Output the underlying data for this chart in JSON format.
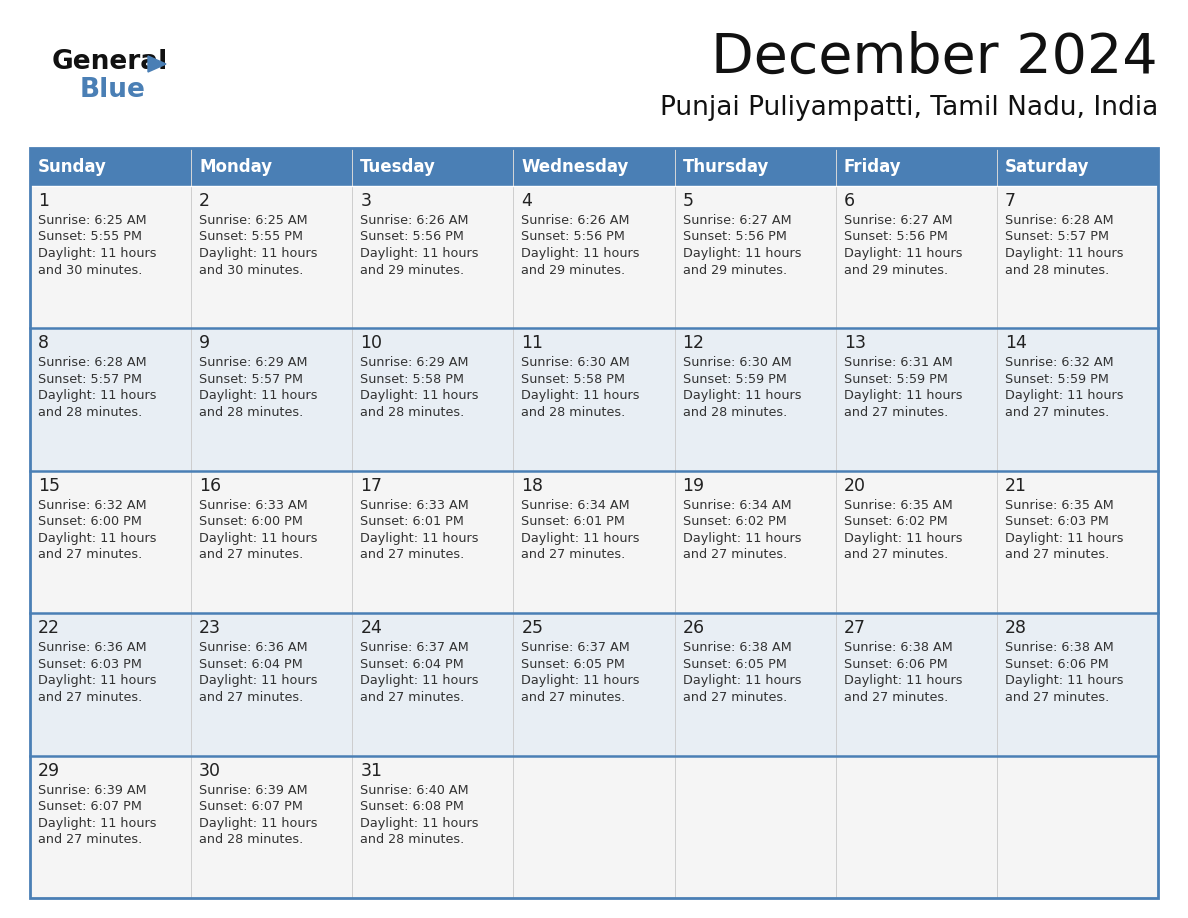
{
  "title": "December 2024",
  "subtitle": "Punjai Puliyampatti, Tamil Nadu, India",
  "header_color": "#4a7fb5",
  "header_text_color": "#ffffff",
  "border_color": "#4a7fb5",
  "text_color": "#333333",
  "days_of_week": [
    "Sunday",
    "Monday",
    "Tuesday",
    "Wednesday",
    "Thursday",
    "Friday",
    "Saturday"
  ],
  "weeks": [
    [
      {
        "day": "1",
        "sunrise": "6:25 AM",
        "sunset": "5:55 PM",
        "daylight1": "Daylight: 11 hours",
        "daylight2": "and 30 minutes."
      },
      {
        "day": "2",
        "sunrise": "6:25 AM",
        "sunset": "5:55 PM",
        "daylight1": "Daylight: 11 hours",
        "daylight2": "and 30 minutes."
      },
      {
        "day": "3",
        "sunrise": "6:26 AM",
        "sunset": "5:56 PM",
        "daylight1": "Daylight: 11 hours",
        "daylight2": "and 29 minutes."
      },
      {
        "day": "4",
        "sunrise": "6:26 AM",
        "sunset": "5:56 PM",
        "daylight1": "Daylight: 11 hours",
        "daylight2": "and 29 minutes."
      },
      {
        "day": "5",
        "sunrise": "6:27 AM",
        "sunset": "5:56 PM",
        "daylight1": "Daylight: 11 hours",
        "daylight2": "and 29 minutes."
      },
      {
        "day": "6",
        "sunrise": "6:27 AM",
        "sunset": "5:56 PM",
        "daylight1": "Daylight: 11 hours",
        "daylight2": "and 29 minutes."
      },
      {
        "day": "7",
        "sunrise": "6:28 AM",
        "sunset": "5:57 PM",
        "daylight1": "Daylight: 11 hours",
        "daylight2": "and 28 minutes."
      }
    ],
    [
      {
        "day": "8",
        "sunrise": "6:28 AM",
        "sunset": "5:57 PM",
        "daylight1": "Daylight: 11 hours",
        "daylight2": "and 28 minutes."
      },
      {
        "day": "9",
        "sunrise": "6:29 AM",
        "sunset": "5:57 PM",
        "daylight1": "Daylight: 11 hours",
        "daylight2": "and 28 minutes."
      },
      {
        "day": "10",
        "sunrise": "6:29 AM",
        "sunset": "5:58 PM",
        "daylight1": "Daylight: 11 hours",
        "daylight2": "and 28 minutes."
      },
      {
        "day": "11",
        "sunrise": "6:30 AM",
        "sunset": "5:58 PM",
        "daylight1": "Daylight: 11 hours",
        "daylight2": "and 28 minutes."
      },
      {
        "day": "12",
        "sunrise": "6:30 AM",
        "sunset": "5:59 PM",
        "daylight1": "Daylight: 11 hours",
        "daylight2": "and 28 minutes."
      },
      {
        "day": "13",
        "sunrise": "6:31 AM",
        "sunset": "5:59 PM",
        "daylight1": "Daylight: 11 hours",
        "daylight2": "and 27 minutes."
      },
      {
        "day": "14",
        "sunrise": "6:32 AM",
        "sunset": "5:59 PM",
        "daylight1": "Daylight: 11 hours",
        "daylight2": "and 27 minutes."
      }
    ],
    [
      {
        "day": "15",
        "sunrise": "6:32 AM",
        "sunset": "6:00 PM",
        "daylight1": "Daylight: 11 hours",
        "daylight2": "and 27 minutes."
      },
      {
        "day": "16",
        "sunrise": "6:33 AM",
        "sunset": "6:00 PM",
        "daylight1": "Daylight: 11 hours",
        "daylight2": "and 27 minutes."
      },
      {
        "day": "17",
        "sunrise": "6:33 AM",
        "sunset": "6:01 PM",
        "daylight1": "Daylight: 11 hours",
        "daylight2": "and 27 minutes."
      },
      {
        "day": "18",
        "sunrise": "6:34 AM",
        "sunset": "6:01 PM",
        "daylight1": "Daylight: 11 hours",
        "daylight2": "and 27 minutes."
      },
      {
        "day": "19",
        "sunrise": "6:34 AM",
        "sunset": "6:02 PM",
        "daylight1": "Daylight: 11 hours",
        "daylight2": "and 27 minutes."
      },
      {
        "day": "20",
        "sunrise": "6:35 AM",
        "sunset": "6:02 PM",
        "daylight1": "Daylight: 11 hours",
        "daylight2": "and 27 minutes."
      },
      {
        "day": "21",
        "sunrise": "6:35 AM",
        "sunset": "6:03 PM",
        "daylight1": "Daylight: 11 hours",
        "daylight2": "and 27 minutes."
      }
    ],
    [
      {
        "day": "22",
        "sunrise": "6:36 AM",
        "sunset": "6:03 PM",
        "daylight1": "Daylight: 11 hours",
        "daylight2": "and 27 minutes."
      },
      {
        "day": "23",
        "sunrise": "6:36 AM",
        "sunset": "6:04 PM",
        "daylight1": "Daylight: 11 hours",
        "daylight2": "and 27 minutes."
      },
      {
        "day": "24",
        "sunrise": "6:37 AM",
        "sunset": "6:04 PM",
        "daylight1": "Daylight: 11 hours",
        "daylight2": "and 27 minutes."
      },
      {
        "day": "25",
        "sunrise": "6:37 AM",
        "sunset": "6:05 PM",
        "daylight1": "Daylight: 11 hours",
        "daylight2": "and 27 minutes."
      },
      {
        "day": "26",
        "sunrise": "6:38 AM",
        "sunset": "6:05 PM",
        "daylight1": "Daylight: 11 hours",
        "daylight2": "and 27 minutes."
      },
      {
        "day": "27",
        "sunrise": "6:38 AM",
        "sunset": "6:06 PM",
        "daylight1": "Daylight: 11 hours",
        "daylight2": "and 27 minutes."
      },
      {
        "day": "28",
        "sunrise": "6:38 AM",
        "sunset": "6:06 PM",
        "daylight1": "Daylight: 11 hours",
        "daylight2": "and 27 minutes."
      }
    ],
    [
      {
        "day": "29",
        "sunrise": "6:39 AM",
        "sunset": "6:07 PM",
        "daylight1": "Daylight: 11 hours",
        "daylight2": "and 27 minutes."
      },
      {
        "day": "30",
        "sunrise": "6:39 AM",
        "sunset": "6:07 PM",
        "daylight1": "Daylight: 11 hours",
        "daylight2": "and 28 minutes."
      },
      {
        "day": "31",
        "sunrise": "6:40 AM",
        "sunset": "6:08 PM",
        "daylight1": "Daylight: 11 hours",
        "daylight2": "and 28 minutes."
      },
      null,
      null,
      null,
      null
    ]
  ]
}
